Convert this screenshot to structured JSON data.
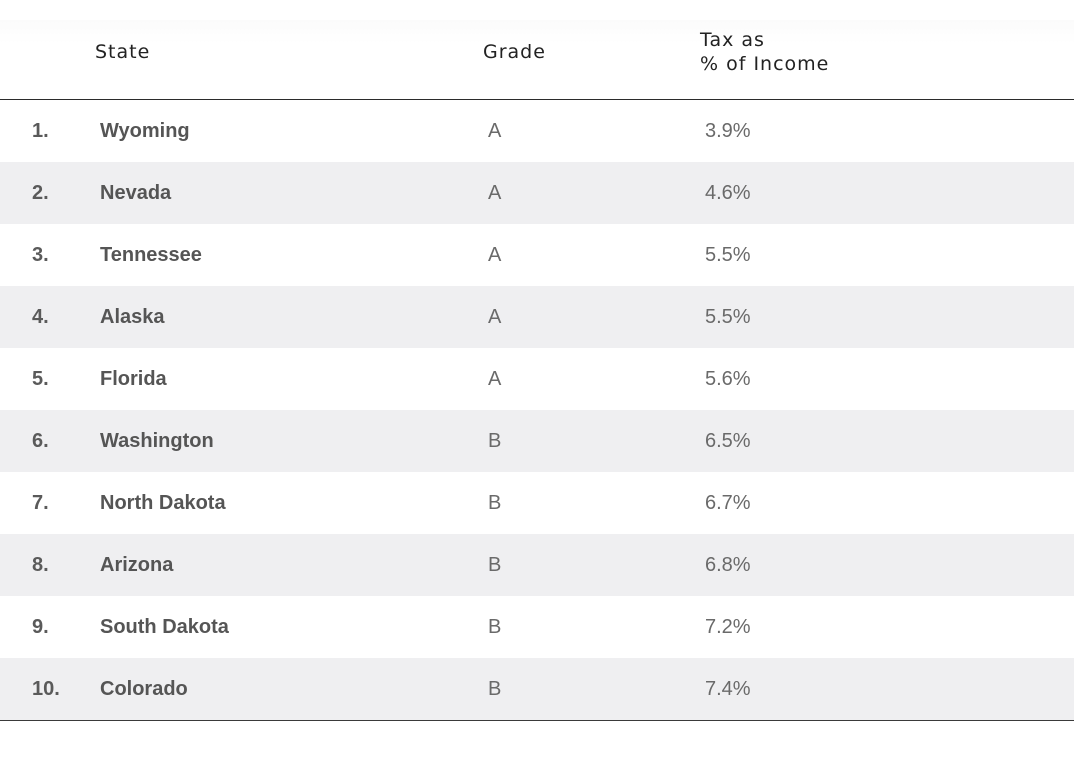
{
  "chart_data": {
    "type": "table",
    "columns": [
      "",
      "State",
      "Grade",
      "Tax as\n% of Income"
    ],
    "rows": [
      {
        "rank": "1.",
        "state": "Wyoming",
        "grade": "A",
        "tax": "3.9%"
      },
      {
        "rank": "2.",
        "state": "Nevada",
        "grade": "A",
        "tax": "4.6%"
      },
      {
        "rank": "3.",
        "state": "Tennessee",
        "grade": "A",
        "tax": "5.5%"
      },
      {
        "rank": "4.",
        "state": "Alaska",
        "grade": "A",
        "tax": "5.5%"
      },
      {
        "rank": "5.",
        "state": "Florida",
        "grade": "A",
        "tax": "5.6%"
      },
      {
        "rank": "6.",
        "state": "Washington",
        "grade": "B",
        "tax": "6.5%"
      },
      {
        "rank": "7.",
        "state": "North Dakota",
        "grade": "B",
        "tax": "6.7%"
      },
      {
        "rank": "8.",
        "state": "Arizona",
        "grade": "B",
        "tax": "6.8%"
      },
      {
        "rank": "9.",
        "state": "South Dakota",
        "grade": "B",
        "tax": "7.2%"
      },
      {
        "rank": "10.",
        "state": "Colorado",
        "grade": "B",
        "tax": "7.4%"
      }
    ]
  },
  "colors": {
    "stripe": "#efeff1",
    "rule": "#2b2b2b",
    "text": "#555555"
  }
}
